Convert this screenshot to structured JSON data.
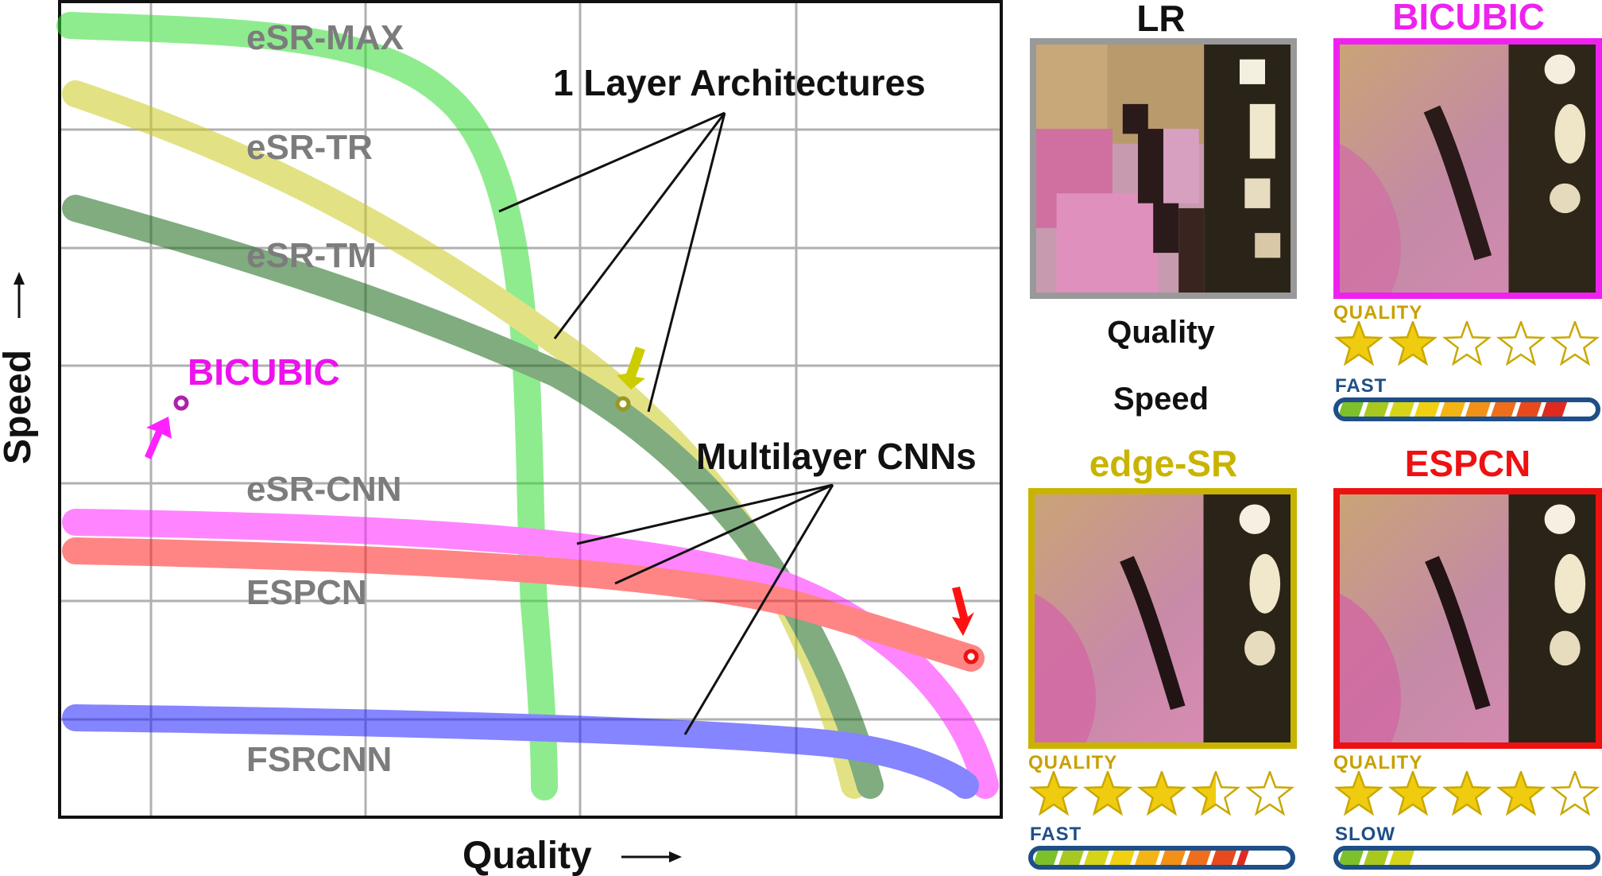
{
  "chart": {
    "xlabel": "Quality",
    "ylabel": "Speed",
    "curves": [
      {
        "name": "eSR-MAX",
        "color": "#55dd55"
      },
      {
        "name": "eSR-TR",
        "color": "#cfcf3a"
      },
      {
        "name": "eSR-TM",
        "color": "#2f7d2f"
      },
      {
        "name": "eSR-CNN",
        "color": "#ff44ff"
      },
      {
        "name": "ESPCN",
        "color": "#ff3333"
      },
      {
        "name": "FSRCNN",
        "color": "#3333ff"
      }
    ],
    "annotations": {
      "one_layer": "1 Layer Architectures",
      "multilayer": "Multilayer CNNs",
      "bicubic": "BICUBIC"
    },
    "colors": {
      "bicubic": "#ee11ee",
      "edge_sr": "#cccc00",
      "espcn": "#ee1111"
    }
  },
  "panels": {
    "lr": {
      "title": "LR",
      "quality_text": "Quality",
      "speed_text": "Speed"
    },
    "bicubic": {
      "title": "BICUBIC",
      "color": "#ee22ee",
      "quality_label": "QUALITY",
      "quality_stars": 2,
      "speed_label": "FAST",
      "speed_level": 0.88
    },
    "edge_sr": {
      "title": "edge-SR",
      "color": "#c8b400",
      "quality_label": "QUALITY",
      "quality_stars": 3.5,
      "speed_label": "FAST",
      "speed_level": 0.82
    },
    "espcn": {
      "title": "ESPCN",
      "color": "#ee1111",
      "quality_label": "QUALITY",
      "quality_stars": 4,
      "speed_label": "SLOW",
      "speed_level": 0.28
    }
  }
}
